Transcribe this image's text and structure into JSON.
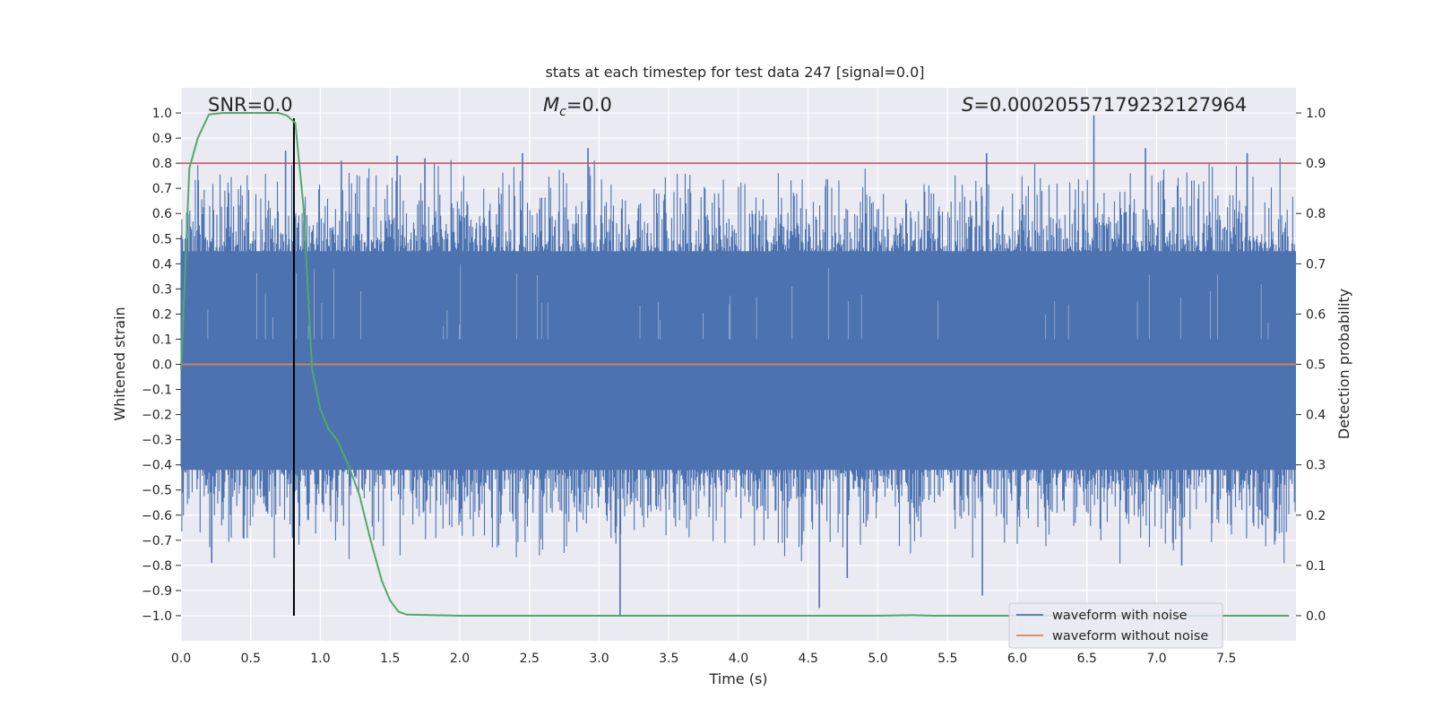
{
  "chart_data": {
    "type": "line",
    "title": "stats at each timestep for test data 247 [signal=0.0]",
    "xlabel": "Time (s)",
    "ylabel_left": "Whitened strain",
    "ylabel_right": "Detection probability",
    "xlim": [
      0.0,
      8.0
    ],
    "ylim_left": [
      -1.1,
      1.1
    ],
    "ylim_right": [
      -0.05,
      1.05
    ],
    "x_ticks": [
      "0.0",
      "0.5",
      "1.0",
      "1.5",
      "2.0",
      "2.5",
      "3.0",
      "3.5",
      "4.0",
      "4.5",
      "5.0",
      "5.5",
      "6.0",
      "6.5",
      "7.0",
      "7.5"
    ],
    "x_tick_values": [
      0.0,
      0.5,
      1.0,
      1.5,
      2.0,
      2.5,
      3.0,
      3.5,
      4.0,
      4.5,
      5.0,
      5.5,
      6.0,
      6.5,
      7.0,
      7.5
    ],
    "y_left_ticks": [
      "1.0",
      "0.9",
      "0.8",
      "0.7",
      "0.6",
      "0.5",
      "0.4",
      "0.3",
      "0.2",
      "0.1",
      "0.0",
      "−0.1",
      "−0.2",
      "−0.3",
      "−0.4",
      "−0.5",
      "−0.6",
      "−0.7",
      "−0.8",
      "−0.9",
      "−1.0"
    ],
    "y_left_tick_values": [
      1.0,
      0.9,
      0.8,
      0.7,
      0.6,
      0.5,
      0.4,
      0.3,
      0.2,
      0.1,
      0.0,
      -0.1,
      -0.2,
      -0.3,
      -0.4,
      -0.5,
      -0.6,
      -0.7,
      -0.8,
      -0.9,
      -1.0
    ],
    "y_right_ticks": [
      "1.0",
      "0.9",
      "0.8",
      "0.7",
      "0.6",
      "0.5",
      "0.4",
      "0.3",
      "0.2",
      "0.1",
      "0.0"
    ],
    "y_right_tick_values": [
      1.0,
      0.9,
      0.8,
      0.7,
      0.6,
      0.5,
      0.4,
      0.3,
      0.2,
      0.1,
      0.0
    ],
    "grid": true,
    "annotations": {
      "snr": "SNR=0.0",
      "mc_symbol": "M",
      "mc_sub": "c",
      "mc_value": "=0.0",
      "s_symbol": "S",
      "s_value": "=0.00020557179232127964"
    },
    "marker_time": 0.81,
    "threshold_probability": 0.9,
    "noise_series": {
      "name": "waveform with noise",
      "color": "#4c72b0",
      "dense_band": [
        -0.42,
        0.45
      ],
      "notable_peaks": [
        {
          "t": 0.75,
          "v": 0.85
        },
        {
          "t": 1.15,
          "v": 0.81
        },
        {
          "t": 1.55,
          "v": 0.83
        },
        {
          "t": 1.75,
          "v": 0.82
        },
        {
          "t": 2.45,
          "v": 0.84
        },
        {
          "t": 2.92,
          "v": 0.86
        },
        {
          "t": 5.78,
          "v": 0.84
        },
        {
          "t": 6.55,
          "v": 0.99
        },
        {
          "t": 6.92,
          "v": 0.86
        },
        {
          "t": 7.65,
          "v": 0.84
        },
        {
          "t": 0.8,
          "v": -0.69
        },
        {
          "t": 3.15,
          "v": -1.0
        },
        {
          "t": 4.58,
          "v": -0.97
        },
        {
          "t": 5.75,
          "v": -0.92
        },
        {
          "t": 7.18,
          "v": -0.8
        },
        {
          "t": 0.22,
          "v": -0.79
        },
        {
          "t": 4.78,
          "v": -0.85
        }
      ]
    },
    "clean_series": {
      "name": "waveform without noise",
      "color": "#dd8452",
      "value": 0.0
    },
    "probability_series": {
      "name": "detection probability",
      "color": "#55a868",
      "t": [
        0.0,
        0.06,
        0.12,
        0.2,
        0.3,
        0.5,
        0.7,
        0.76,
        0.82,
        0.88,
        0.94,
        1.0,
        1.06,
        1.12,
        1.2,
        1.28,
        1.36,
        1.44,
        1.5,
        1.56,
        1.62,
        2.0,
        3.0,
        4.0,
        5.0,
        5.25,
        5.4,
        6.0,
        7.0,
        7.95
      ],
      "p": [
        0.49,
        0.89,
        0.95,
        0.997,
        1.0,
        1.0,
        1.0,
        0.995,
        0.98,
        0.81,
        0.49,
        0.41,
        0.37,
        0.35,
        0.3,
        0.24,
        0.15,
        0.07,
        0.03,
        0.008,
        0.002,
        0.0,
        0.0,
        0.0,
        0.0,
        0.001,
        0.0,
        0.0,
        0.0,
        0.0
      ]
    },
    "threshold_color": "#c44e52",
    "marker_color": "#000000",
    "legend_location": "lower right"
  }
}
